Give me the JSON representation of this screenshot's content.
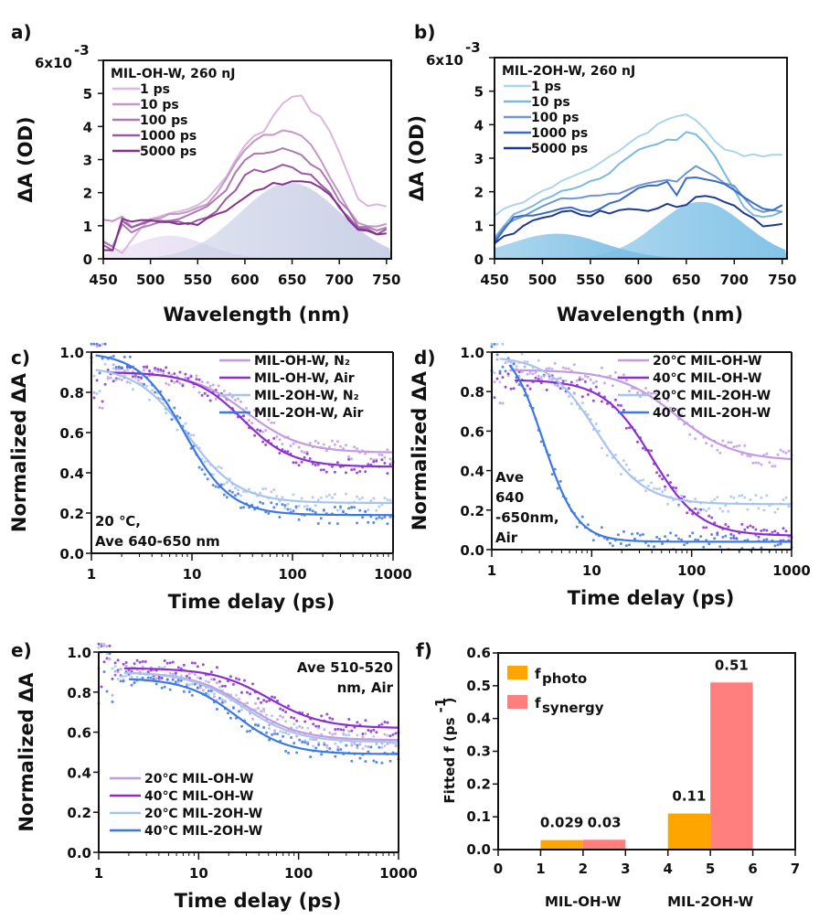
{
  "chart_data": [
    {
      "id": "a",
      "panel_label": "a)",
      "type": "line",
      "title": "MIL-OH-W,  260 nJ",
      "xlabel": "Wavelength (nm)",
      "ylabel": "ΔA (OD)",
      "xlim": [
        450,
        755
      ],
      "ylim": [
        0,
        6
      ],
      "xticks": [
        450,
        500,
        550,
        600,
        650,
        700,
        750
      ],
      "yticks": [
        0,
        1,
        2,
        3,
        4,
        5
      ],
      "ytick_labels": [
        "0",
        "1",
        "2",
        "3",
        "4",
        "5"
      ],
      "ytop_label": "6x10",
      "ytop_exp": "-3",
      "legend_position": "top-left",
      "x": [
        450,
        460,
        470,
        480,
        490,
        500,
        510,
        520,
        530,
        540,
        550,
        560,
        570,
        580,
        590,
        600,
        610,
        620,
        630,
        640,
        650,
        660,
        670,
        680,
        690,
        700,
        710,
        720,
        730,
        740,
        750
      ],
      "series": [
        {
          "name": "1 ps",
          "color": "#dcb6dc",
          "values": [
            0.6,
            0.3,
            0.2,
            0.6,
            0.9,
            1.2,
            1.3,
            1.35,
            1.4,
            1.5,
            1.6,
            1.8,
            2.1,
            2.5,
            3.0,
            3.4,
            3.7,
            3.9,
            4.3,
            4.7,
            4.85,
            4.9,
            4.5,
            4.3,
            3.8,
            3.2,
            2.5,
            1.8,
            1.55,
            1.6,
            1.6
          ]
        },
        {
          "name": "10 ps",
          "color": "#c597c7",
          "values": [
            1.2,
            1.1,
            1.3,
            1.0,
            1.1,
            1.2,
            1.25,
            1.3,
            1.35,
            1.4,
            1.5,
            1.7,
            2.0,
            2.4,
            2.9,
            3.3,
            3.6,
            3.7,
            3.8,
            3.9,
            3.85,
            3.7,
            3.4,
            3.0,
            2.5,
            2.0,
            1.5,
            1.1,
            1.0,
            1.0,
            1.05
          ]
        },
        {
          "name": "100 ps",
          "color": "#ad78b3",
          "values": [
            0.5,
            0.4,
            1.0,
            0.8,
            0.9,
            1.0,
            1.1,
            1.15,
            1.2,
            1.3,
            1.4,
            1.6,
            1.8,
            2.1,
            2.6,
            3.0,
            3.2,
            3.2,
            3.2,
            3.3,
            3.3,
            3.1,
            2.9,
            2.7,
            2.3,
            1.8,
            1.4,
            1.0,
            0.95,
            0.9,
            0.95
          ]
        },
        {
          "name": "1000 ps",
          "color": "#9a5aa3",
          "values": [
            0.4,
            0.3,
            1.1,
            0.9,
            1.0,
            1.1,
            1.1,
            1.1,
            1.15,
            1.1,
            1.2,
            1.3,
            1.5,
            1.8,
            2.1,
            2.5,
            2.7,
            2.6,
            2.75,
            2.8,
            2.8,
            2.6,
            2.5,
            2.3,
            2.0,
            1.6,
            1.2,
            0.9,
            0.85,
            0.8,
            0.85
          ]
        },
        {
          "name": "5000 ps",
          "color": "#84348d",
          "values": [
            0.3,
            0.2,
            1.2,
            1.1,
            1.2,
            1.2,
            1.15,
            1.1,
            1.1,
            1.05,
            1.0,
            1.2,
            1.35,
            1.5,
            1.7,
            1.8,
            2.1,
            2.1,
            2.25,
            2.3,
            2.3,
            2.3,
            2.25,
            2.1,
            1.9,
            1.6,
            1.2,
            0.85,
            0.8,
            0.75,
            0.8
          ]
        }
      ],
      "fills": [
        {
          "name": "band-1",
          "center": 520,
          "width": 55,
          "height": 0.7,
          "color": "#dcd0ec"
        },
        {
          "name": "band-2",
          "center": 648,
          "width": 75,
          "height": 2.3,
          "color": "#c8cfe6"
        }
      ]
    },
    {
      "id": "b",
      "panel_label": "b)",
      "type": "line",
      "title": "MIL-2OH-W,   260 nJ",
      "xlabel": "Wavelength (nm)",
      "ylabel": "ΔA (OD)",
      "xlim": [
        450,
        755
      ],
      "ylim": [
        0,
        6
      ],
      "xticks": [
        450,
        500,
        550,
        600,
        650,
        700,
        750
      ],
      "yticks": [
        0,
        1,
        2,
        3,
        4,
        5
      ],
      "ytick_labels": [
        "0",
        "1",
        "2",
        "3",
        "4",
        "5"
      ],
      "ytop_label": "6x10",
      "ytop_exp": "-3",
      "legend_position": "top-left",
      "x": [
        450,
        460,
        470,
        480,
        490,
        500,
        510,
        520,
        530,
        540,
        550,
        560,
        570,
        580,
        590,
        600,
        610,
        620,
        630,
        640,
        650,
        660,
        670,
        680,
        690,
        700,
        710,
        720,
        730,
        740,
        750
      ],
      "series": [
        {
          "name": "1 ps",
          "color": "#a9d6e8",
          "values": [
            1.3,
            1.45,
            1.6,
            1.7,
            1.85,
            2.0,
            2.15,
            2.3,
            2.45,
            2.6,
            2.7,
            2.8,
            3.0,
            3.2,
            3.4,
            3.6,
            3.8,
            4.0,
            4.2,
            4.25,
            4.3,
            4.1,
            3.8,
            3.5,
            3.3,
            3.2,
            3.1,
            3.1,
            3.05,
            3.1,
            3.1
          ]
        },
        {
          "name": "10 ps",
          "color": "#7ab9e0",
          "values": [
            0.6,
            1.0,
            1.3,
            1.5,
            1.6,
            1.75,
            1.9,
            2.0,
            2.1,
            2.2,
            2.3,
            2.4,
            2.6,
            2.8,
            3.0,
            3.2,
            3.3,
            3.4,
            3.5,
            3.6,
            3.75,
            3.7,
            3.4,
            3.0,
            2.6,
            2.1,
            1.6,
            1.35,
            1.3,
            1.35,
            1.4
          ]
        },
        {
          "name": "100 ps",
          "color": "#6f96d0",
          "values": [
            0.5,
            1.0,
            1.2,
            1.3,
            1.4,
            1.6,
            1.7,
            1.75,
            1.8,
            1.8,
            1.85,
            1.9,
            1.95,
            2.0,
            2.1,
            2.15,
            2.2,
            2.35,
            2.3,
            2.3,
            2.6,
            2.8,
            2.6,
            2.5,
            2.3,
            2.2,
            1.8,
            1.5,
            1.4,
            1.4,
            1.45
          ]
        },
        {
          "name": "1000 ps",
          "color": "#3b6bc2",
          "values": [
            0.5,
            0.9,
            1.3,
            1.35,
            1.3,
            1.4,
            1.45,
            1.45,
            1.5,
            1.4,
            1.4,
            1.45,
            1.6,
            1.7,
            1.9,
            2.1,
            2.2,
            2.2,
            2.3,
            1.9,
            2.4,
            2.4,
            2.35,
            2.3,
            2.2,
            2.0,
            1.8,
            1.6,
            1.5,
            1.45,
            1.55
          ]
        },
        {
          "name": "5000 ps",
          "color": "#1c3a94",
          "values": [
            0.4,
            0.7,
            0.8,
            1.0,
            1.1,
            1.2,
            1.25,
            1.35,
            1.4,
            1.35,
            1.3,
            1.4,
            1.4,
            1.4,
            1.45,
            1.45,
            1.4,
            1.5,
            1.65,
            1.5,
            1.6,
            1.8,
            1.9,
            1.8,
            1.7,
            1.6,
            1.4,
            1.2,
            1.0,
            0.95,
            1.0
          ]
        }
      ],
      "fills": [
        {
          "name": "band-1",
          "center": 515,
          "width": 70,
          "height": 0.75,
          "color": "#4aa6da"
        },
        {
          "name": "band-2",
          "center": 665,
          "width": 65,
          "height": 1.7,
          "color": "#7cc0e6"
        }
      ]
    },
    {
      "id": "c",
      "panel_label": "c)",
      "type": "scatter",
      "xlabel": "Time delay (ps)",
      "ylabel": "Normalized ΔA",
      "xscale": "log",
      "xlim": [
        1,
        1000
      ],
      "ylim": [
        0,
        1.0
      ],
      "xticks": [
        1,
        10,
        100,
        1000
      ],
      "yticks": [
        0.0,
        0.2,
        0.4,
        0.6,
        0.8,
        1.0
      ],
      "legend_position": "top-right",
      "annotation": [
        "20 ℃,",
        "Ave 640-650 nm"
      ],
      "annotation_position": "bottom-left",
      "series": [
        {
          "name": "MIL-OH-W, N₂",
          "color": "#c29be0",
          "start": 1.5,
          "a0": 0.9,
          "ainf": 0.5,
          "tau": 35,
          "k": 1.6
        },
        {
          "name": "MIL-OH-W, Air",
          "color": "#8a2fcf",
          "start": 1.5,
          "a0": 0.9,
          "ainf": 0.43,
          "tau": 32,
          "k": 1.8
        },
        {
          "name": "MIL-2OH-W, N₂",
          "color": "#a9c3f0",
          "start": 1.1,
          "a0": 0.93,
          "ainf": 0.25,
          "tau": 9,
          "k": 1.7
        },
        {
          "name": "MIL-2OH-W, Air",
          "color": "#3c78e0",
          "start": 1.1,
          "a0": 1.0,
          "ainf": 0.19,
          "tau": 8.5,
          "k": 1.9
        }
      ]
    },
    {
      "id": "d",
      "panel_label": "d)",
      "type": "scatter",
      "xlabel": "Time delay (ps)",
      "ylabel": "Normalized ΔA",
      "xscale": "log",
      "xlim": [
        1,
        1000
      ],
      "ylim": [
        0,
        1.0
      ],
      "xticks": [
        1,
        10,
        100,
        1000
      ],
      "yticks": [
        0.0,
        0.2,
        0.4,
        0.6,
        0.8,
        1.0
      ],
      "legend_position": "top-right",
      "annotation": [
        "Ave",
        "640",
        "-650nm,",
        "Air"
      ],
      "annotation_position": "bottom-left",
      "series": [
        {
          "name": "20℃ MIL-OH-W",
          "color": "#c29be0",
          "start": 1.5,
          "a0": 0.91,
          "ainf": 0.45,
          "tau": 70,
          "k": 1.5
        },
        {
          "name": "40℃ MIL-OH-W",
          "color": "#8a2fcf",
          "start": 1.7,
          "a0": 0.86,
          "ainf": 0.07,
          "tau": 40,
          "k": 1.8
        },
        {
          "name": "20℃ MIL-2OH-W",
          "color": "#a9c3f0",
          "start": 1.2,
          "a0": 0.98,
          "ainf": 0.23,
          "tau": 11,
          "k": 1.8
        },
        {
          "name": "40℃ MIL-2OH-W",
          "color": "#3c78e0",
          "start": 1.5,
          "a0": 1.05,
          "ainf": 0.04,
          "tau": 3.3,
          "k": 2.6
        }
      ]
    },
    {
      "id": "e",
      "panel_label": "e)",
      "type": "scatter",
      "xlabel": "Time delay (ps)",
      "ylabel": "Normalized ΔA",
      "xscale": "log",
      "xlim": [
        1,
        1000
      ],
      "ylim": [
        0,
        1.0
      ],
      "xticks": [
        1,
        10,
        100,
        1000
      ],
      "yticks": [
        0.0,
        0.2,
        0.4,
        0.6,
        0.8,
        1.0
      ],
      "legend_position": "bottom-left",
      "annotation": [
        "Ave 510-520",
        "nm, Air"
      ],
      "annotation_position": "top-right",
      "series": [
        {
          "name": "20℃ MIL-OH-W",
          "color": "#c29be0",
          "start": 1.8,
          "a0": 0.9,
          "ainf": 0.56,
          "tau": 30,
          "k": 1.6
        },
        {
          "name": "40℃ MIL-OH-W",
          "color": "#8a2fcf",
          "start": 1.8,
          "a0": 0.92,
          "ainf": 0.62,
          "tau": 50,
          "k": 1.6
        },
        {
          "name": "20℃ MIL-2OH-W",
          "color": "#a9c3f0",
          "start": 1.8,
          "a0": 0.9,
          "ainf": 0.55,
          "tau": 28,
          "k": 1.6
        },
        {
          "name": "40℃ MIL-2OH-W",
          "color": "#3c78e0",
          "start": 2.0,
          "a0": 0.87,
          "ainf": 0.49,
          "tau": 24,
          "k": 1.7
        }
      ]
    },
    {
      "id": "f",
      "panel_label": "f)",
      "type": "bar",
      "xlabel_groups": [
        "MIL-OH-W",
        "MIL-2OH-W"
      ],
      "ylabel": "Fitted f (ps",
      "ylabel_exp": "-1",
      "ylabel_close": ")",
      "xlim": [
        0,
        7
      ],
      "ylim": [
        0,
        0.6
      ],
      "xticks": [
        0,
        1,
        2,
        3,
        4,
        5,
        6,
        7
      ],
      "yticks": [
        0.0,
        0.1,
        0.2,
        0.3,
        0.4,
        0.5,
        0.6
      ],
      "legend_position": "top-left",
      "series": [
        {
          "name": "f",
          "sub": "photo",
          "color": "#ffa500"
        },
        {
          "name": "f",
          "sub": "synergy",
          "color": "#ff7f7f"
        }
      ],
      "bars": [
        {
          "series": 0,
          "x0": 1,
          "x1": 2,
          "value": 0.029
        },
        {
          "series": 1,
          "x0": 2,
          "x1": 3,
          "value": 0.03
        },
        {
          "series": 1,
          "x0": 3,
          "x1": 4,
          "value": 0.002
        },
        {
          "series": 0,
          "x0": 4,
          "x1": 5,
          "value": 0.11
        },
        {
          "series": 1,
          "x0": 5,
          "x1": 6,
          "value": 0.51
        }
      ],
      "bar_labels": [
        {
          "text": "0.029",
          "x": 1.5,
          "value": 0.029
        },
        {
          "text": "0.03",
          "x": 2.5,
          "value": 0.03
        },
        {
          "text": "0.11",
          "x": 4.5,
          "value": 0.11
        },
        {
          "text": "0.51",
          "x": 5.5,
          "value": 0.51
        }
      ]
    }
  ]
}
